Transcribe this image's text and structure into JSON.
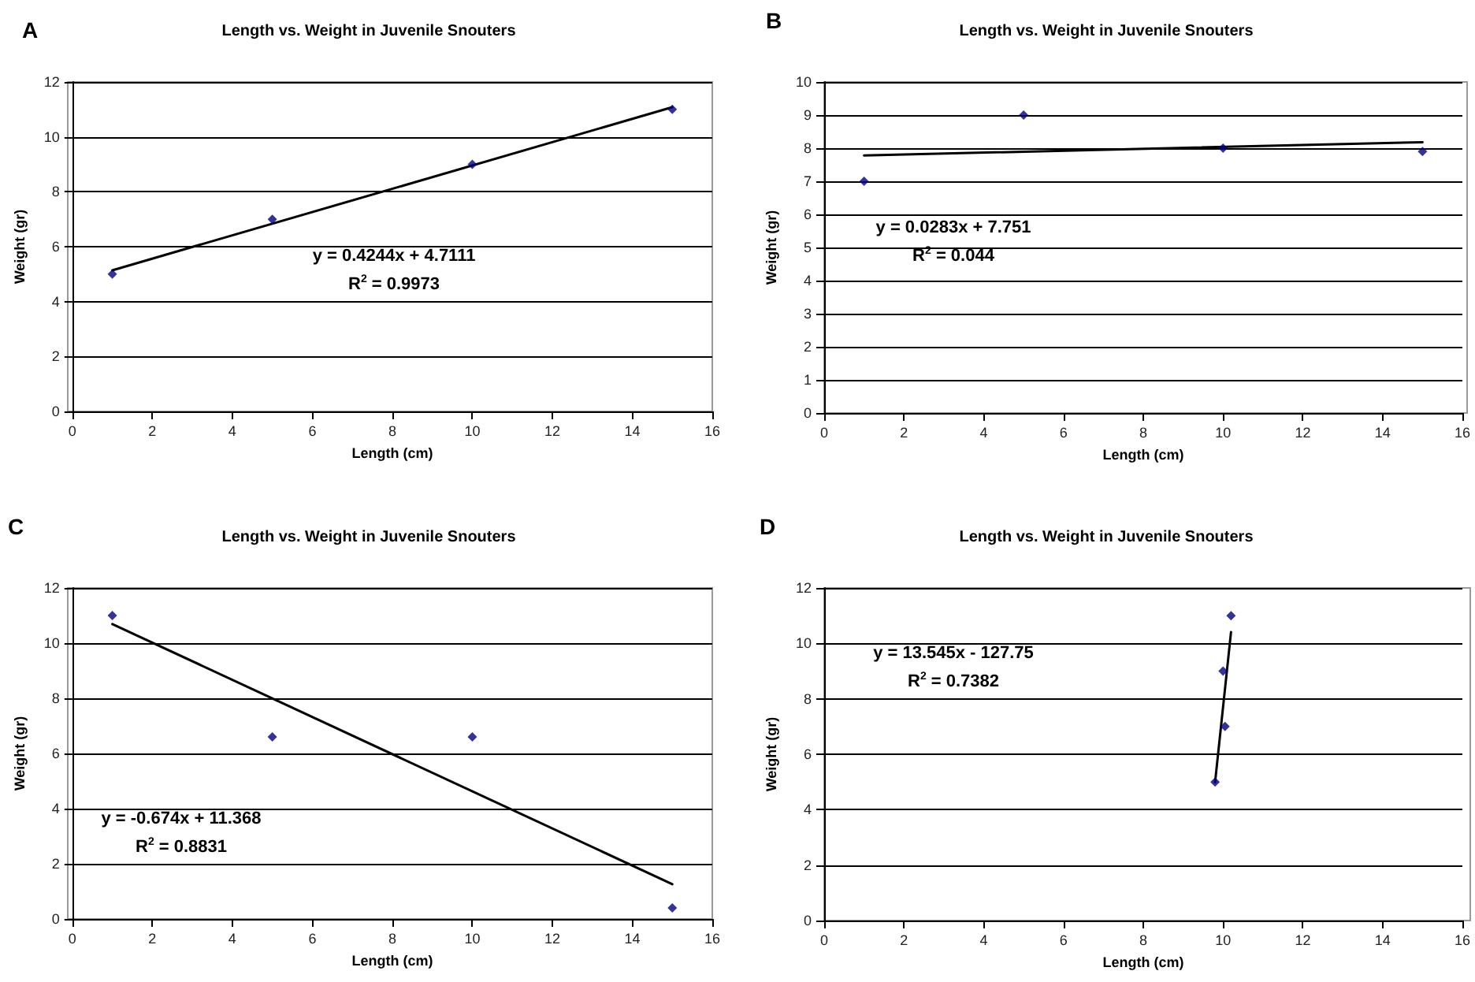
{
  "chart_data": [
    {
      "type": "scatter",
      "title": "Length vs. Weight in Juvenile Snouters",
      "xlabel": "Length (cm)",
      "ylabel": "Weight (gr)",
      "xlim": [
        0,
        16
      ],
      "xticks": [
        0,
        2,
        4,
        6,
        8,
        10,
        12,
        14,
        16
      ],
      "ylim": [
        0,
        12
      ],
      "yticks": [
        0,
        2,
        4,
        6,
        8,
        10,
        12
      ],
      "grid": "y",
      "annotations": [
        "A",
        "y = 0.4244x + 4.7111",
        "R$^{2}$ = 0.9973"
      ],
      "series": [
        {
          "marker": "diamond",
          "color": "#000080",
          "x": [
            1,
            5,
            10,
            15
          ],
          "values": [
            5,
            7,
            9,
            11
          ]
        },
        {
          "type": "line",
          "marker": "none",
          "line_style": "solid",
          "color": "#000000",
          "x": [
            1,
            15
          ],
          "values": [
            5.14,
            11.08
          ]
        }
      ]
    },
    {
      "type": "scatter",
      "title": "Length vs. Weight in Juvenile Snouters",
      "xlabel": "Length (cm)",
      "ylabel": "Weight (gr)",
      "xlim": [
        0,
        16
      ],
      "xticks": [
        0,
        2,
        4,
        6,
        8,
        10,
        12,
        14,
        16
      ],
      "ylim": [
        0,
        10
      ],
      "yticks": [
        0,
        1,
        2,
        3,
        4,
        5,
        6,
        7,
        8,
        9,
        10
      ],
      "grid": "y",
      "annotations": [
        "B",
        "y = 0.0283x + 7.751",
        "R$^{2}$ = 0.044"
      ],
      "series": [
        {
          "marker": "diamond",
          "color": "#000080",
          "x": [
            1,
            5,
            10,
            15
          ],
          "values": [
            7,
            9,
            8,
            7.9
          ]
        },
        {
          "type": "line",
          "marker": "none",
          "line_style": "solid",
          "color": "#000000",
          "x": [
            1,
            15
          ],
          "values": [
            7.78,
            8.18
          ]
        }
      ]
    },
    {
      "type": "scatter",
      "title": "Length vs. Weight in Juvenile Snouters",
      "xlabel": "Length (cm)",
      "ylabel": "Weight (gr)",
      "xlim": [
        0,
        16
      ],
      "xticks": [
        0,
        2,
        4,
        6,
        8,
        10,
        12,
        14,
        16
      ],
      "ylim": [
        0,
        12
      ],
      "yticks": [
        0,
        2,
        4,
        6,
        8,
        10,
        12
      ],
      "grid": "y",
      "annotations": [
        "C",
        "y = -0.674x + 11.368",
        "R$^{2}$ = 0.8831"
      ],
      "series": [
        {
          "marker": "diamond",
          "color": "#000080",
          "x": [
            1,
            5,
            10,
            15
          ],
          "values": [
            11,
            6.6,
            6.6,
            0.4
          ]
        },
        {
          "type": "line",
          "marker": "none",
          "line_style": "solid",
          "color": "#000000",
          "x": [
            1,
            15
          ],
          "values": [
            10.69,
            1.26
          ]
        }
      ]
    },
    {
      "type": "scatter",
      "title": "Length vs. Weight in Juvenile Snouters",
      "xlabel": "Length (cm)",
      "ylabel": "Weight (gr)",
      "xlim": [
        0,
        16
      ],
      "xticks": [
        0,
        2,
        4,
        6,
        8,
        10,
        12,
        14,
        16
      ],
      "ylim": [
        0,
        12
      ],
      "yticks": [
        0,
        2,
        4,
        6,
        8,
        10,
        12
      ],
      "grid": "y",
      "annotations": [
        "D",
        "y = 13.545x - 127.75",
        "R$^{2}$ = 0.7382"
      ],
      "series": [
        {
          "marker": "diamond",
          "color": "#000080",
          "x": [
            9.8,
            10,
            10.05,
            10.2
          ],
          "values": [
            5,
            9,
            7,
            11
          ]
        },
        {
          "type": "line",
          "marker": "none",
          "line_style": "solid",
          "color": "#000000",
          "x": [
            9.8,
            10.2
          ],
          "values": [
            4.99,
            10.41
          ]
        }
      ]
    }
  ]
}
